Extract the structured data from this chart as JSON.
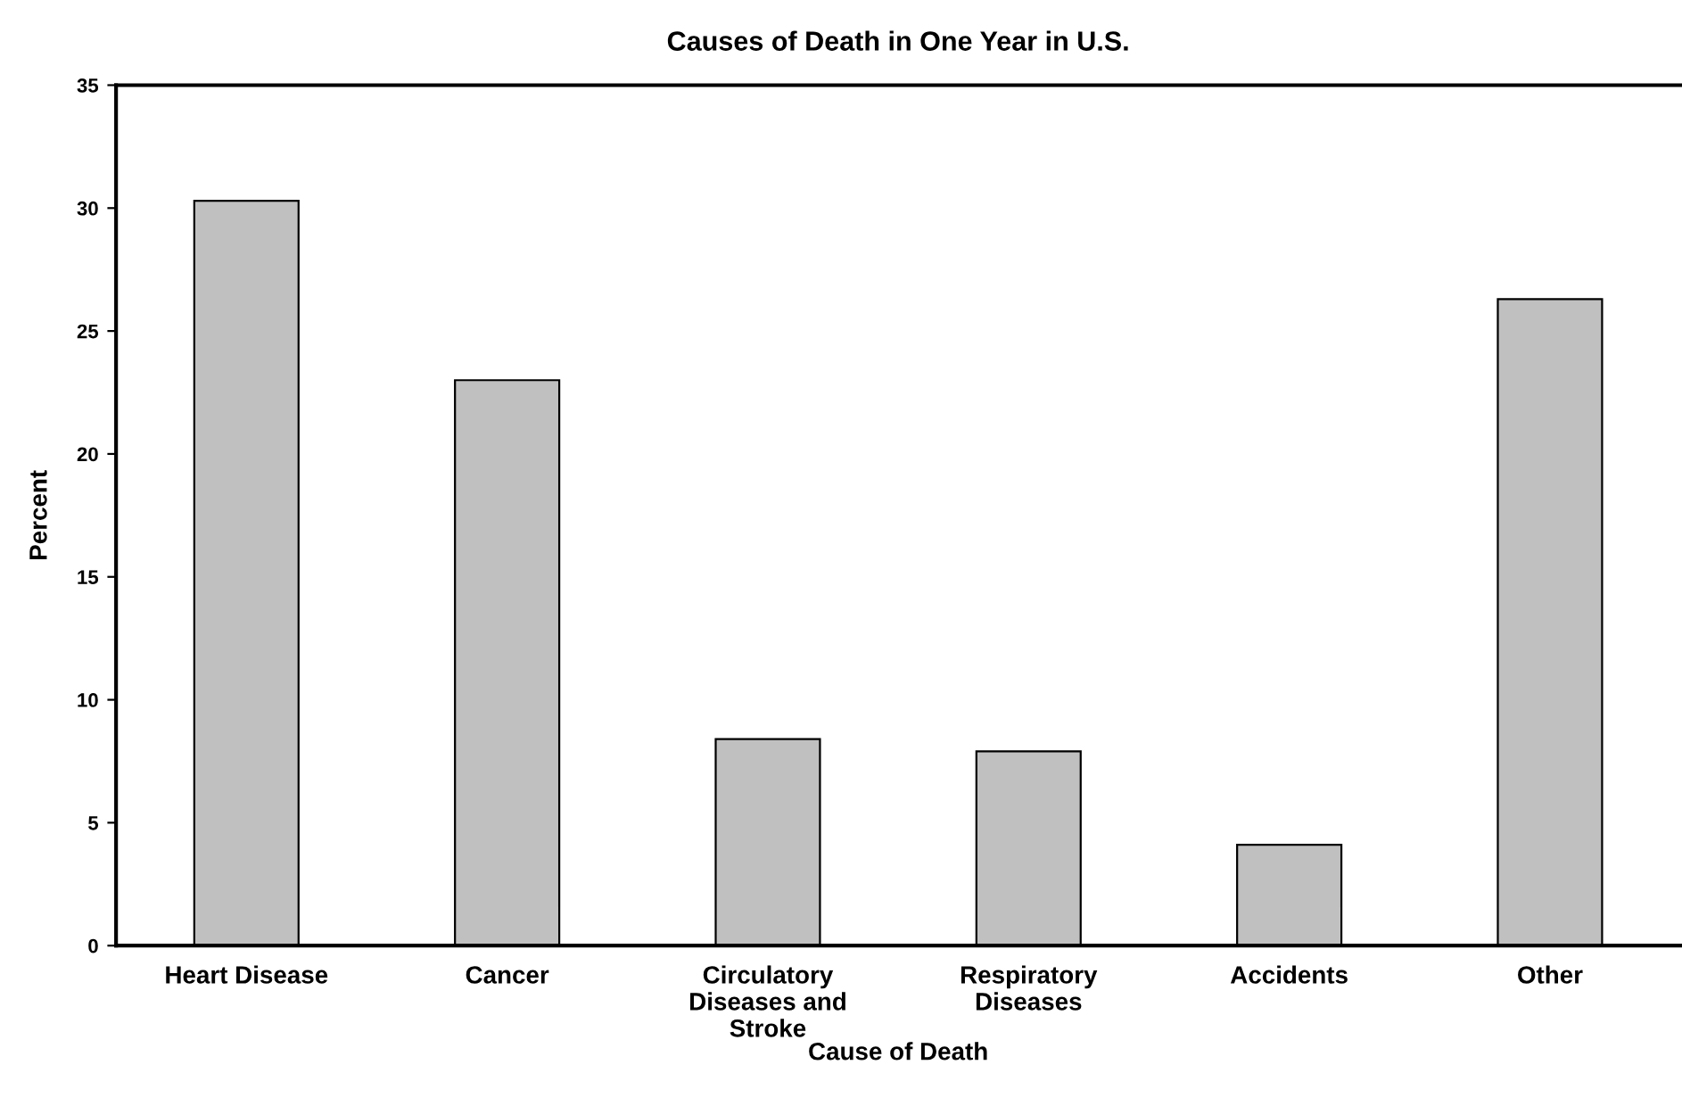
{
  "chart_data": {
    "type": "bar",
    "title": "Causes of Death in One Year in U.S.",
    "xlabel": "Cause of Death",
    "ylabel": "Percent",
    "categories": [
      "Heart Disease",
      "Cancer",
      "Circulatory\nDiseases and\nStroke",
      "Respiratory\nDiseases",
      "Accidents",
      "Other"
    ],
    "values": [
      30.3,
      23.0,
      8.4,
      7.9,
      4.1,
      26.3
    ],
    "color": "#c0c0c0",
    "ylim": [
      0,
      35
    ],
    "yticks": [
      0,
      5,
      10,
      15,
      20,
      25,
      30,
      35
    ],
    "grid": false,
    "legend": false
  }
}
